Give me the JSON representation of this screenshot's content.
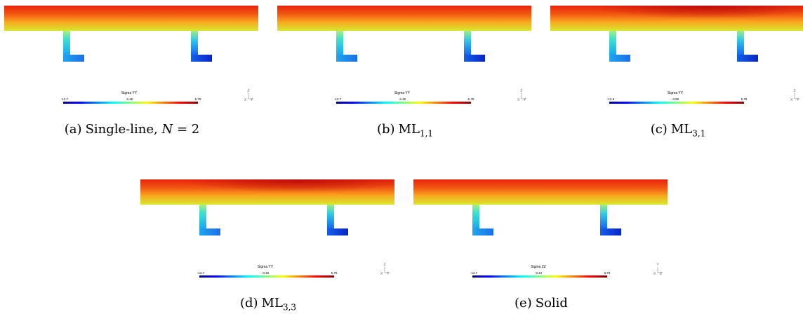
{
  "panels": [
    {
      "label": "(a)",
      "caption": "Single-line, N = 2",
      "colorbar": {
        "title": "Sigma YY",
        "min": "-12.7",
        "mid": "-3.45",
        "max": "5.79"
      },
      "axis": {
        "up": "Z",
        "right": "Y",
        "corner": "X"
      },
      "field": "uniform"
    },
    {
      "label": "(b)",
      "caption": "ML1,1",
      "colorbar": {
        "title": "Sigma YY",
        "min": "-12.7",
        "mid": "-3.45",
        "max": "5.79"
      },
      "axis": {
        "up": "Z",
        "right": "Y",
        "corner": "X"
      },
      "field": "uniform"
    },
    {
      "label": "(c)",
      "caption": "ML3,1",
      "colorbar": {
        "title": "Sigma YY",
        "min": "-12.9",
        "mid": "-3.56",
        "max": "5.79"
      },
      "axis": {
        "up": "Z",
        "right": "Y",
        "corner": "X"
      },
      "field": "hotspot"
    },
    {
      "label": "(d)",
      "caption": "ML3,3",
      "colorbar": {
        "title": "Sigma YY",
        "min": "-12.7",
        "mid": "-3.45",
        "max": "5.79"
      },
      "axis": {
        "up": "Z",
        "right": "Y",
        "corner": "X"
      },
      "field": "hotspot"
    },
    {
      "label": "(e)",
      "caption": "Solid",
      "colorbar": {
        "title": "Sigma ZZ",
        "min": "-12.7",
        "mid": "-3.44",
        "max": "5.79"
      },
      "axis": {
        "up": "Y",
        "right": "Z",
        "corner": "X"
      },
      "field": "uniform"
    }
  ]
}
